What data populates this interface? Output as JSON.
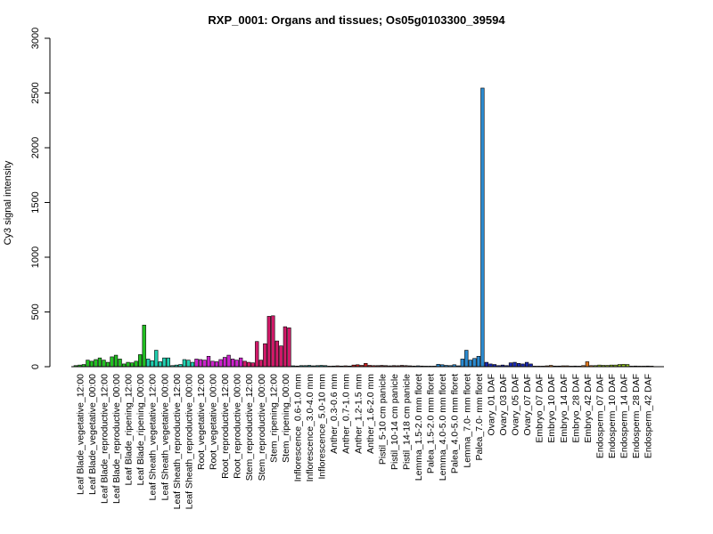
{
  "chart_data": {
    "type": "bar",
    "title": "RXP_0001: Organs and tissues; Os05g0103300_39594",
    "xlabel": "",
    "ylabel": "Cy3 signal intensity",
    "ylim": [
      0,
      3000
    ],
    "yticks": [
      0,
      500,
      1000,
      1500,
      2000,
      2500,
      3000
    ],
    "grid": false,
    "legend": "none",
    "group_labels": [
      "Leaf Blade_vegetative_12:00",
      "Leaf Blade_vegetative_00:00",
      "Leaf Blade_reproductive_12:00",
      "Leaf Blade_reproductive_00:00",
      "Leaf Blade_ripening_12:00",
      "Leaf Blade_ripening_00:00",
      "Leaf Sheath_vegetative_12:00",
      "Leaf Sheath_vegetative_00:00",
      "Leaf Sheath_reproductive_12:00",
      "Leaf Sheath_reproductive_00:00",
      "Root_vegetative_12:00",
      "Root_vegetative_00:00",
      "Root_reproductive_12:00",
      "Root_reproductive_00:00",
      "Stem_reproductive_12:00",
      "Stem_reproductive_00:00",
      "Stem_ripening_12:00",
      "Stem_ripening_00:00",
      "Inflorescence_0.6-1.0 mm",
      "Inflorescence_3.0-4.0 mm",
      "Inflorescence_5.0-10 mm",
      "Anther_0.3-0.6 mm",
      "Anther_0.7-1.0 mm",
      "Anther_1.2-1.5 mm",
      "Anther_1.6-2.0 mm",
      "Pistil_5-10 cm panicle",
      "Pistil_10-14 cm panicle",
      "Pistil_14-18 cm panicle",
      "Lemma_1.5-2.0 mm floret",
      "Palea_1.5-2.0 mm floret",
      "Lemma_4.0-5.0 mm floret",
      "Palea_4.0-5.0 mm floret",
      "Lemma_7.0- mm floret",
      "Palea_7.0- mm floret",
      "Ovary_01 DAF",
      "Ovary_03 DAF",
      "Ovary_05 DAF",
      "Ovary_07 DAF",
      "Embryo_07 DAF",
      "Embryo_10 DAF",
      "Embryo_14 DAF",
      "Embryo_28 DAF",
      "Embryo_42 DAF",
      "Endosperm_07 DAF",
      "Endosperm_10 DAF",
      "Endosperm_14 DAF",
      "Endosperm_28 DAF",
      "Endosperm_42 DAF"
    ],
    "group_colors": [
      "#22c022",
      "#22c022",
      "#22c022",
      "#22c022",
      "#22c022",
      "#22c022",
      "#20d0b0",
      "#20d0b0",
      "#20d0b0",
      "#20d0b0",
      "#cc22cc",
      "#cc22cc",
      "#cc22cc",
      "#cc22cc",
      "#d21a6a",
      "#d21a6a",
      "#d21a6a",
      "#d21a6a",
      "#1a8a8a",
      "#1a8a8a",
      "#1a8a8a",
      "#c82020",
      "#c82020",
      "#c82020",
      "#c82020",
      "#7a3030",
      "#7a3030",
      "#7a3030",
      "#2a8ad0",
      "#2a8ad0",
      "#2a8ad0",
      "#2a8ad0",
      "#2a8ad0",
      "#2a8ad0",
      "#1a2ab0",
      "#1a2ab0",
      "#1a2ab0",
      "#1a2ab0",
      "#e07820",
      "#e07820",
      "#e07820",
      "#e07820",
      "#e07820",
      "#90c020",
      "#90c020",
      "#90c020",
      "#90c020",
      "#90c020"
    ],
    "values": [
      [
        10,
        15,
        20
      ],
      [
        60,
        50,
        65
      ],
      [
        80,
        60,
        40
      ],
      [
        90,
        105,
        70
      ],
      [
        25,
        40,
        35
      ],
      [
        50,
        110,
        380
      ],
      [
        70,
        55,
        150
      ],
      [
        45,
        80,
        80
      ],
      [
        10,
        15,
        20
      ],
      [
        65,
        60,
        40
      ],
      [
        70,
        65,
        60
      ],
      [
        95,
        50,
        45
      ],
      [
        65,
        85,
        105
      ],
      [
        70,
        60,
        80
      ],
      [
        50,
        40,
        35
      ],
      [
        230,
        60,
        210
      ],
      [
        460,
        465,
        235
      ],
      [
        190,
        365,
        355
      ],
      [
        8,
        6,
        10
      ],
      [
        10,
        12,
        8
      ],
      [
        10,
        12,
        10
      ],
      [
        5,
        6,
        8
      ],
      [
        6,
        8,
        6
      ],
      [
        15,
        18,
        12
      ],
      [
        30,
        12,
        10
      ],
      [
        10,
        12,
        10
      ],
      [
        8,
        10,
        9
      ],
      [
        12,
        10,
        8
      ],
      [
        6,
        8,
        6
      ],
      [
        5,
        5,
        5
      ],
      [
        22,
        18,
        12
      ],
      [
        10,
        18,
        8
      ],
      [
        70,
        150,
        60
      ],
      [
        75,
        95,
        2545
      ],
      [
        40,
        25,
        20
      ],
      [
        10,
        15,
        10
      ],
      [
        35,
        40,
        30
      ],
      [
        25,
        40,
        25
      ],
      [
        5,
        5,
        5
      ],
      [
        8,
        12,
        6
      ],
      [
        6,
        8,
        8
      ],
      [
        5,
        6,
        5
      ],
      [
        10,
        45,
        10
      ],
      [
        10,
        15,
        12
      ],
      [
        12,
        15,
        15
      ],
      [
        20,
        22,
        20
      ],
      [
        5,
        6,
        5
      ],
      [
        5,
        6,
        5
      ]
    ]
  }
}
